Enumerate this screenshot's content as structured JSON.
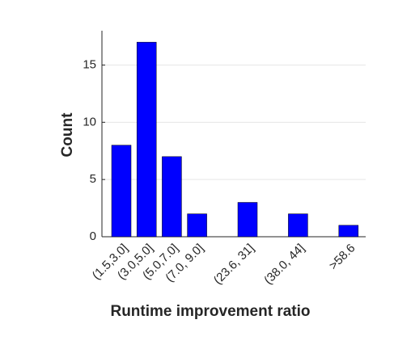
{
  "chart_data": {
    "type": "bar",
    "xlabel": "Runtime improvement ratio",
    "ylabel": "Count",
    "categories": [
      "(1.5,3.0]",
      "(3.0,5.0]",
      "(5.0,7.0]",
      "(7.0, 9.0]",
      null,
      "(23.6, 31]",
      null,
      "(38.0, 44]",
      null,
      ">58.6"
    ],
    "values": [
      8,
      17,
      7,
      2,
      null,
      3,
      null,
      2,
      null,
      1
    ],
    "color": "#0000ff",
    "ylim": [
      0,
      18
    ],
    "yticks": [
      0,
      5,
      10,
      15
    ],
    "grid": true
  }
}
